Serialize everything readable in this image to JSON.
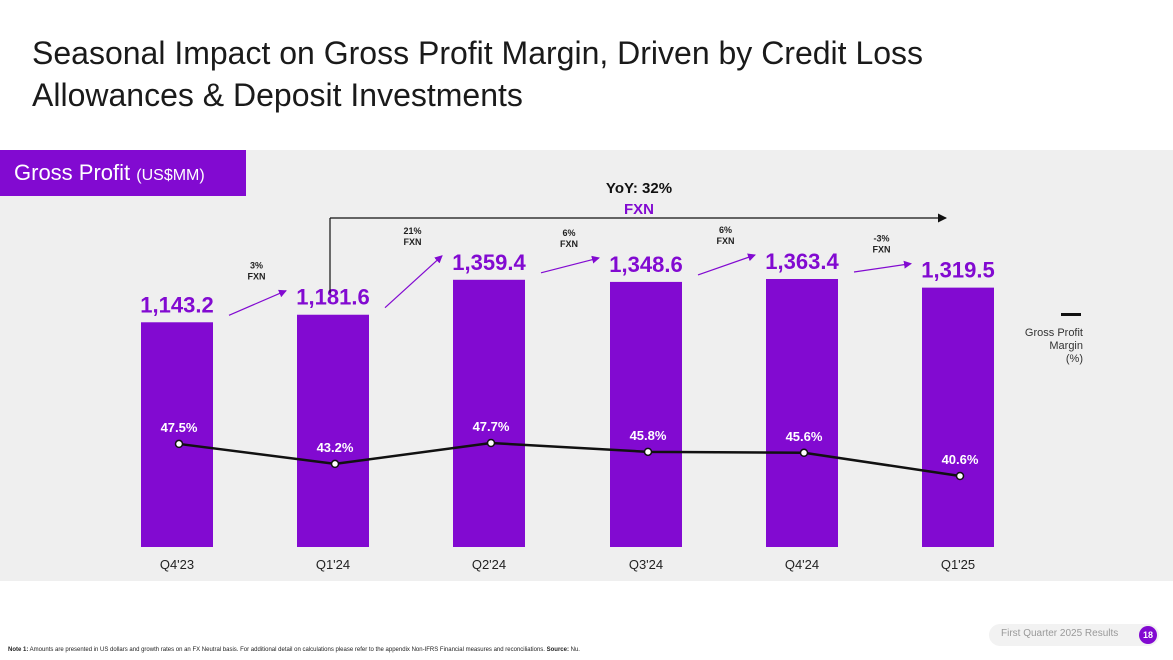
{
  "title_lines": [
    "Seasonal Impact on Gross Profit Margin, Driven by Credit Loss",
    "Allowances & Deposit Investments"
  ],
  "section": {
    "label": "Gross Profit",
    "unit": "(US$MM)"
  },
  "colors": {
    "accent": "#820ad1",
    "panel": "#efefef",
    "line": "#111111"
  },
  "chart_data": {
    "type": "bar",
    "title": "Gross Profit (US$MM)",
    "categories": [
      "Q4'23",
      "Q1'24",
      "Q2'24",
      "Q3'24",
      "Q4'24",
      "Q1'25"
    ],
    "series": [
      {
        "name": "Gross Profit",
        "values": [
          1143.2,
          1181.6,
          1359.4,
          1348.6,
          1363.4,
          1319.5
        ],
        "labels": [
          "1,143.2",
          "1,181.6",
          "1,359.4",
          "1,348.6",
          "1,363.4",
          "1,319.5"
        ]
      },
      {
        "name": "Gross Profit Margin (%)",
        "type": "line",
        "values": [
          47.5,
          43.2,
          47.7,
          45.8,
          45.6,
          40.6
        ],
        "labels": [
          "47.5%",
          "43.2%",
          "47.7%",
          "45.8%",
          "45.6%",
          "40.6%"
        ]
      }
    ],
    "growth_labels": [
      {
        "pct": "3%",
        "basis": "FXN"
      },
      {
        "pct": "21%",
        "basis": "FXN"
      },
      {
        "pct": "6%",
        "basis": "FXN"
      },
      {
        "pct": "6%",
        "basis": "FXN"
      },
      {
        "pct": "-3%",
        "basis": "FXN"
      }
    ],
    "yoy": {
      "label": "YoY: 32%",
      "basis": "FXN"
    },
    "legend": {
      "line_label_lines": [
        "Gross Profit",
        "Margin",
        "(%)"
      ]
    }
  },
  "footer": {
    "deck": "First Quarter 2025 Results",
    "page": "18",
    "note_label": "Note 1:",
    "note_text": " Amounts are presented in US dollars and growth rates on an FX Neutral basis. For additional detail on calculations please refer to the appendix Non-IFRS Financial measures and reconciliations. ",
    "source_label": "Source:",
    "source_text": " Nu."
  }
}
